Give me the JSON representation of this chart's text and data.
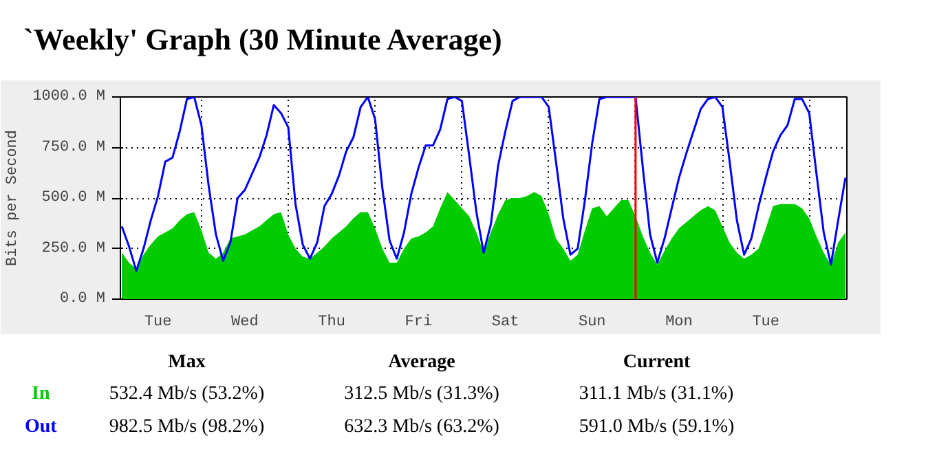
{
  "chart_data": {
    "type": "area",
    "title": "`Weekly' Graph (30 Minute Average)",
    "ylabel": "Bits per Second",
    "categories": [
      null,
      null,
      null,
      null,
      null,
      "Tue",
      null,
      null,
      null,
      null,
      null,
      null,
      null,
      null,
      null,
      null,
      null,
      "Wed",
      null,
      null,
      null,
      null,
      null,
      null,
      null,
      null,
      null,
      null,
      null,
      "Thu",
      null,
      null,
      null,
      null,
      null,
      null,
      null,
      null,
      null,
      null,
      null,
      "Fri",
      null,
      null,
      null,
      null,
      null,
      null,
      null,
      null,
      null,
      null,
      null,
      "Sat",
      null,
      null,
      null,
      null,
      null,
      null,
      null,
      null,
      null,
      null,
      null,
      "Sun",
      null,
      null,
      null,
      null,
      null,
      null,
      null,
      null,
      null,
      null,
      null,
      "Mon",
      null,
      null,
      null,
      null,
      null,
      null,
      null,
      null,
      null,
      null,
      null,
      "Tue",
      null,
      null,
      null,
      null,
      null,
      null,
      null,
      null,
      null,
      null,
      null
    ],
    "ylim": [
      0,
      1000
    ],
    "yticks": [
      {
        "value": 0,
        "label": "0.0 M"
      },
      {
        "value": 250,
        "label": "250.0 M"
      },
      {
        "value": 500,
        "label": "500.0 M"
      },
      {
        "value": 750,
        "label": "750.0 M"
      },
      {
        "value": 1000,
        "label": "1000.0 M"
      }
    ],
    "grid": true,
    "legend": "bottom",
    "series": [
      {
        "name": "In",
        "color": "#00cc00",
        "values": [
          230,
          180,
          150,
          220,
          270,
          310,
          330,
          350,
          390,
          420,
          430,
          340,
          230,
          200,
          230,
          300,
          310,
          320,
          340,
          360,
          390,
          420,
          430,
          320,
          250,
          210,
          200,
          230,
          260,
          300,
          330,
          360,
          400,
          430,
          430,
          350,
          250,
          180,
          180,
          250,
          300,
          310,
          330,
          360,
          450,
          530,
          490,
          450,
          410,
          330,
          230,
          330,
          420,
          490,
          500,
          500,
          510,
          530,
          510,
          420,
          300,
          250,
          190,
          220,
          340,
          450,
          460,
          410,
          450,
          490,
          490,
          410,
          310,
          230,
          170,
          240,
          300,
          350,
          380,
          410,
          440,
          460,
          440,
          360,
          280,
          230,
          200,
          220,
          250,
          350,
          460,
          470,
          470,
          470,
          450,
          400,
          310,
          230,
          170,
          280,
          330
        ]
      },
      {
        "name": "Out",
        "type": "line",
        "color": "#0000ff",
        "values": [
          360,
          260,
          140,
          250,
          390,
          510,
          680,
          700,
          830,
          990,
          1000,
          860,
          560,
          320,
          190,
          280,
          500,
          540,
          620,
          700,
          810,
          960,
          920,
          850,
          470,
          270,
          200,
          280,
          460,
          520,
          610,
          730,
          800,
          950,
          1000,
          890,
          550,
          290,
          200,
          330,
          520,
          650,
          760,
          760,
          840,
          990,
          1000,
          980,
          710,
          430,
          230,
          370,
          660,
          830,
          980,
          1000,
          1000,
          1000,
          1000,
          950,
          680,
          400,
          220,
          250,
          490,
          770,
          990,
          1000,
          1000,
          1000,
          1000,
          1000,
          650,
          320,
          180,
          300,
          450,
          600,
          720,
          830,
          940,
          990,
          1000,
          950,
          680,
          390,
          220,
          300,
          460,
          600,
          730,
          810,
          860,
          990,
          990,
          920,
          620,
          330,
          170,
          390,
          600
        ]
      }
    ],
    "annotations": [
      "Max",
      "Average",
      "Current",
      "532.4 Mb/s (53.2%)",
      "312.5 Mb/s (31.3%)",
      "311.1 Mb/s (31.1%)",
      "982.5 Mb/s (98.2%)",
      "632.3 Mb/s (63.2%)",
      "591.0 Mb/s (59.1%)"
    ]
  }
}
